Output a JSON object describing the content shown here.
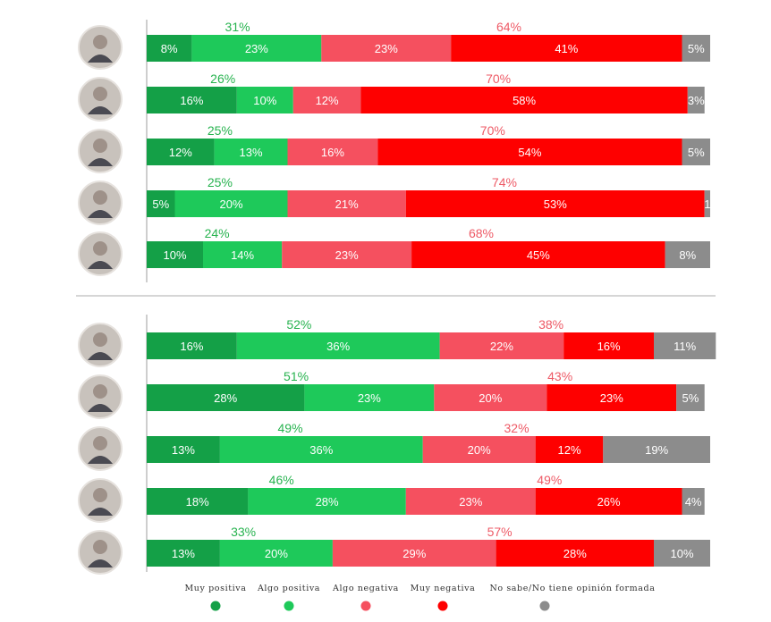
{
  "chart_data": {
    "type": "bar",
    "stacked": true,
    "orientation": "horizontal",
    "categories_legend": [
      "Muy positiva",
      "Algo positiva",
      "Algo negativa",
      "Muy negativa",
      "No sabe/No tiene opinión formada"
    ],
    "colors": {
      "muy_positiva": "#14a047",
      "algo_positiva": "#1ec95a",
      "algo_negativa": "#f5505f",
      "muy_negativa": "#fe0000",
      "no_sabe": "#8c8c8c",
      "positive_total_text": "#27b34f",
      "negative_total_text": "#ee5a66"
    },
    "groups": [
      {
        "rows": [
          {
            "values": [
              8,
              23,
              23,
              41,
              5
            ],
            "labels": [
              "8%",
              "23%",
              "23%",
              "41%",
              "5%"
            ],
            "positive_total": "31%",
            "negative_total": "64%"
          },
          {
            "values": [
              16,
              10,
              12,
              58,
              3
            ],
            "labels": [
              "16%",
              "10%",
              "12%",
              "58%",
              "3%"
            ],
            "positive_total": "26%",
            "negative_total": "70%"
          },
          {
            "values": [
              12,
              13,
              16,
              54,
              5
            ],
            "labels": [
              "12%",
              "13%",
              "16%",
              "54%",
              "5%"
            ],
            "positive_total": "25%",
            "negative_total": "70%"
          },
          {
            "values": [
              5,
              20,
              21,
              53,
              1
            ],
            "labels": [
              "5%",
              "20%",
              "21%",
              "53%",
              "1"
            ],
            "positive_total": "25%",
            "negative_total": "74%"
          },
          {
            "values": [
              10,
              14,
              23,
              45,
              8
            ],
            "labels": [
              "10%",
              "14%",
              "23%",
              "45%",
              "8%"
            ],
            "positive_total": "24%",
            "negative_total": "68%"
          }
        ]
      },
      {
        "rows": [
          {
            "values": [
              16,
              36,
              22,
              16,
              11
            ],
            "labels": [
              "16%",
              "36%",
              "22%",
              "16%",
              "11%"
            ],
            "positive_total": "52%",
            "negative_total": "38%"
          },
          {
            "values": [
              28,
              23,
              20,
              23,
              5
            ],
            "labels": [
              "28%",
              "23%",
              "20%",
              "23%",
              "5%"
            ],
            "positive_total": "51%",
            "negative_total": "43%"
          },
          {
            "values": [
              13,
              36,
              20,
              12,
              19
            ],
            "labels": [
              "13%",
              "36%",
              "20%",
              "12%",
              "19%"
            ],
            "positive_total": "49%",
            "negative_total": "32%"
          },
          {
            "values": [
              18,
              28,
              23,
              26,
              4
            ],
            "labels": [
              "18%",
              "28%",
              "23%",
              "26%",
              "4%"
            ],
            "positive_total": "46%",
            "negative_total": "49%"
          },
          {
            "values": [
              13,
              20,
              29,
              28,
              10
            ],
            "labels": [
              "13%",
              "20%",
              "29%",
              "28%",
              "10%"
            ],
            "positive_total": "33%",
            "negative_total": "57%"
          }
        ]
      }
    ]
  }
}
